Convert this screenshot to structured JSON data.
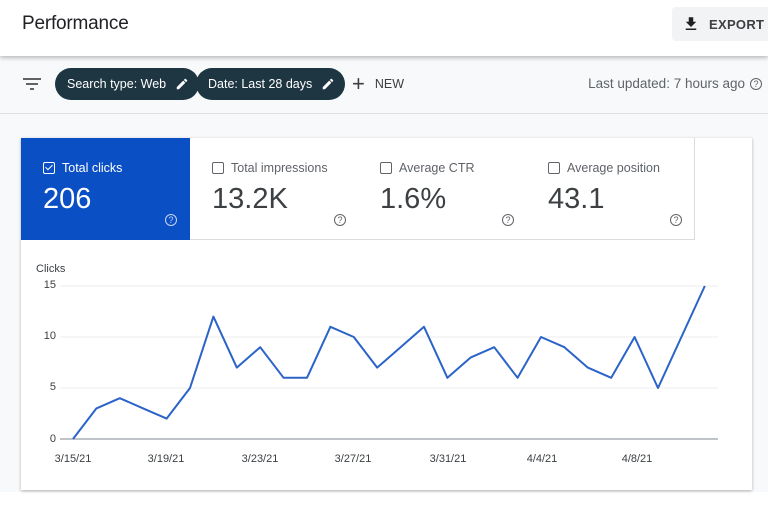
{
  "header": {
    "title": "Performance",
    "export_label": "EXPORT",
    "export_icon": "download-icon"
  },
  "filters": {
    "filter_icon": "filter-list-icon",
    "chips": [
      {
        "label": "Search type: Web",
        "icon": "edit-pencil-icon"
      },
      {
        "label": "Date: Last 28 days",
        "icon": "edit-pencil-icon"
      }
    ],
    "new_label": "NEW",
    "new_icon": "plus-icon",
    "last_updated": "Last updated: 7 hours ago",
    "help_icon": "help-circle-icon"
  },
  "metrics": [
    {
      "label": "Total clicks",
      "value": "206",
      "checked": true,
      "color": "#0b4fc4"
    },
    {
      "label": "Total impressions",
      "value": "13.2K",
      "checked": false
    },
    {
      "label": "Average CTR",
      "value": "1.6%",
      "checked": false
    },
    {
      "label": "Average position",
      "value": "43.1",
      "checked": false
    }
  ],
  "colors": {
    "accent": "#0b4fc4",
    "chip_bg": "#1e3542",
    "line": "#2b63c9",
    "page_bg": "#f8f9fa"
  },
  "chart_data": {
    "type": "line",
    "title": "",
    "ylabel": "Clicks",
    "xlabel": "",
    "ylim": [
      0,
      15
    ],
    "yticks": [
      0,
      5,
      10,
      15
    ],
    "xtick_labels": [
      "3/15/21",
      "3/19/21",
      "3/23/21",
      "3/27/21",
      "3/31/21",
      "4/4/21",
      "4/8/21"
    ],
    "grid": true,
    "x": [
      "3/15/21",
      "3/16/21",
      "3/17/21",
      "3/18/21",
      "3/19/21",
      "3/20/21",
      "3/21/21",
      "3/22/21",
      "3/23/21",
      "3/24/21",
      "3/25/21",
      "3/26/21",
      "3/27/21",
      "3/28/21",
      "3/29/21",
      "3/30/21",
      "3/31/21",
      "4/1/21",
      "4/2/21",
      "4/3/21",
      "4/4/21",
      "4/5/21",
      "4/6/21",
      "4/7/21",
      "4/8/21",
      "4/9/21",
      "4/10/21",
      "4/11/21"
    ],
    "series": [
      {
        "name": "Clicks",
        "values": [
          0,
          3,
          4,
          3,
          2,
          5,
          12,
          7,
          9,
          6,
          6,
          11,
          10,
          7,
          9,
          11,
          6,
          8,
          9,
          6,
          10,
          9,
          7,
          6,
          10,
          5,
          10,
          15
        ]
      }
    ]
  }
}
